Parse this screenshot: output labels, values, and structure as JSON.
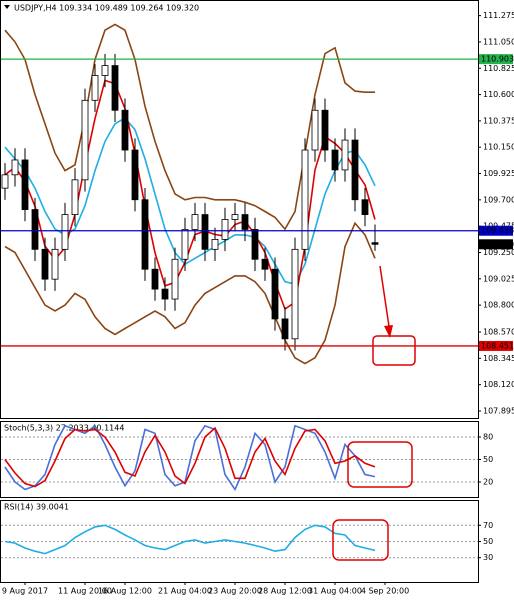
{
  "chart_data": [
    {
      "type": "candlestick",
      "title": "USDJPY,H4  109.334 109.489 109.264 109.320",
      "categories": [
        null,
        null,
        "9 Aug 2017",
        null,
        null,
        null,
        null,
        null,
        "11 Aug 20:00",
        null,
        null,
        null,
        "16 Aug 12:00",
        null,
        null,
        null,
        null,
        null,
        "21 Aug 04:00",
        null,
        null,
        null,
        null,
        "23 Aug 20:00",
        null,
        null,
        null,
        null,
        "28 Aug 12:00",
        null,
        null,
        null,
        null,
        "31 Aug 04:00",
        null,
        null,
        null,
        null,
        "4 Sep 20:00",
        null
      ],
      "open": [
        109.8,
        109.914,
        110.041,
        109.617,
        109.277,
        109.022,
        109.277,
        109.574,
        109.871,
        110.551,
        110.763,
        110.848,
        110.466,
        110.126,
        109.701,
        109.107,
        108.937,
        108.852,
        109.192,
        109.447,
        109.574,
        109.277,
        109.362,
        109.532,
        109.574,
        109.447,
        109.192,
        109.107,
        108.682,
        108.512,
        109.277,
        110.126,
        110.466,
        110.126,
        109.956,
        110.211,
        109.701,
        109.334,
        null,
        null
      ],
      "high": [
        110.014,
        110.141,
        110.141,
        109.717,
        109.377,
        109.377,
        109.674,
        109.971,
        110.651,
        110.863,
        110.948,
        110.948,
        110.566,
        110.226,
        109.801,
        109.207,
        109.037,
        109.292,
        109.547,
        109.674,
        109.674,
        109.462,
        109.632,
        109.674,
        109.674,
        109.547,
        109.292,
        109.207,
        108.782,
        109.377,
        110.226,
        110.566,
        110.566,
        110.226,
        110.311,
        110.311,
        109.801,
        109.489,
        null,
        null
      ],
      "low": [
        109.7,
        109.814,
        109.517,
        109.177,
        108.922,
        108.922,
        109.177,
        109.474,
        109.771,
        110.451,
        110.663,
        110.366,
        110.026,
        109.601,
        109.007,
        108.837,
        108.752,
        108.752,
        109.092,
        109.347,
        109.177,
        109.177,
        109.262,
        109.432,
        109.347,
        109.092,
        109.007,
        108.582,
        108.412,
        108.412,
        109.177,
        110.026,
        110.026,
        109.856,
        109.856,
        109.601,
        109.474,
        109.264,
        null,
        null
      ],
      "close": [
        109.914,
        110.041,
        109.617,
        109.277,
        109.022,
        109.277,
        109.574,
        109.871,
        110.551,
        110.763,
        110.848,
        110.466,
        110.126,
        109.701,
        109.107,
        108.937,
        108.852,
        109.192,
        109.447,
        109.574,
        109.277,
        109.362,
        109.532,
        109.574,
        109.447,
        109.192,
        109.107,
        108.682,
        108.512,
        109.277,
        110.126,
        110.466,
        110.126,
        109.956,
        110.211,
        109.701,
        109.574,
        109.32,
        null,
        null
      ],
      "up_color": "#ffffff",
      "down_color": "#000000",
      "wick_color": "#000000",
      "series": [
        {
          "color": "#8b4513",
          "values": [
            111.15,
            111.05,
            110.9,
            110.6,
            110.35,
            110.1,
            109.95,
            110.0,
            110.4,
            110.9,
            111.15,
            111.2,
            111.15,
            110.9,
            110.5,
            110.2,
            109.95,
            109.75,
            109.7,
            109.72,
            109.72,
            109.7,
            109.7,
            109.7,
            109.68,
            109.65,
            109.6,
            109.55,
            109.45,
            109.6,
            110.1,
            110.6,
            110.95,
            111.0,
            110.7,
            110.63,
            110.62,
            110.62,
            null,
            null
          ]
        },
        {
          "color": "#8b4513",
          "values": [
            109.3,
            109.25,
            109.1,
            108.95,
            108.8,
            108.75,
            108.8,
            108.9,
            108.85,
            108.7,
            108.6,
            108.55,
            108.6,
            108.65,
            108.7,
            108.75,
            108.7,
            108.6,
            108.65,
            108.8,
            108.9,
            108.95,
            109.0,
            109.05,
            109.05,
            109.0,
            108.9,
            108.7,
            108.5,
            108.35,
            108.3,
            108.35,
            108.5,
            108.8,
            109.3,
            109.5,
            109.4,
            109.2,
            null,
            null
          ]
        },
        {
          "color": "#1eaee6",
          "values": [
            110.15,
            110.05,
            109.95,
            109.8,
            109.6,
            109.45,
            109.4,
            109.45,
            109.65,
            109.95,
            110.2,
            110.35,
            110.4,
            110.3,
            110.05,
            109.75,
            109.45,
            109.25,
            109.15,
            109.2,
            109.25,
            109.3,
            109.35,
            109.4,
            109.4,
            109.38,
            109.3,
            109.15,
            109.0,
            108.98,
            109.15,
            109.45,
            109.75,
            109.95,
            110.1,
            110.12,
            110.0,
            109.82,
            null,
            null
          ]
        },
        {
          "color": "#e00000",
          "values": [
            109.914,
            109.978,
            109.857,
            109.645,
            109.305,
            109.192,
            109.291,
            109.574,
            109.999,
            110.395,
            110.721,
            110.692,
            110.48,
            110.098,
            109.645,
            109.248,
            108.965,
            108.994,
            109.164,
            109.404,
            109.433,
            109.404,
            109.39,
            109.489,
            109.518,
            109.404,
            109.249,
            108.994,
            108.767,
            108.824,
            109.305,
            109.956,
            110.239,
            110.183,
            110.098,
            109.956,
            109.829,
            109.532,
            null,
            null
          ]
        }
      ],
      "levels": [
        {
          "value": 110.903,
          "color": "#22b14c"
        },
        {
          "value": 109.436,
          "color": "#0000c8"
        },
        {
          "value": 108.451,
          "color": "#e00000"
        }
      ],
      "last_price": {
        "value": 109.32,
        "label": "109.320"
      },
      "ylim": [
        107.835,
        111.4
      ],
      "yticks": [
        111.275,
        {
          "value": 111.05,
          "label": "111.050"
        },
        110.825,
        {
          "value": 110.6,
          "label": "110.600"
        },
        110.375,
        {
          "value": 110.15,
          "label": "110.150"
        },
        109.925,
        {
          "value": 109.7,
          "label": "109.700"
        },
        109.475,
        {
          "value": 109.25,
          "label": "109.250"
        },
        109.025,
        {
          "value": 108.8,
          "label": "108.800"
        },
        {
          "value": 108.57,
          "label": "108.570"
        },
        108.345,
        {
          "value": 108.12,
          "label": "108.120"
        },
        107.895
      ],
      "grid": false
    },
    {
      "type": "line",
      "title": "Stoch(5,3,3) 27.2033 40.1144",
      "series": [
        {
          "color": "#4a6fd8",
          "values": [
            40,
            20,
            10,
            15,
            30,
            70,
            95,
            90,
            85,
            95,
            70,
            40,
            15,
            35,
            90,
            85,
            30,
            15,
            20,
            75,
            95,
            90,
            30,
            10,
            40,
            85,
            70,
            20,
            40,
            95,
            90,
            85,
            60,
            25,
            70,
            55,
            30,
            27.2033,
            null,
            null
          ]
        },
        {
          "color": "#e00000",
          "values": [
            50,
            32,
            18,
            14,
            22,
            48,
            78,
            90,
            88,
            90,
            80,
            60,
            33,
            28,
            60,
            82,
            60,
            28,
            18,
            45,
            80,
            92,
            65,
            25,
            25,
            60,
            78,
            48,
            30,
            65,
            88,
            90,
            75,
            45,
            48,
            55,
            45,
            40.1144,
            null,
            null
          ]
        }
      ],
      "ylim": [
        0,
        100
      ],
      "yticks": [
        20,
        50,
        80
      ],
      "grid": true
    },
    {
      "type": "line",
      "title": "RSI(14) 39.0041",
      "series": [
        {
          "color": "#1eaee6",
          "values": [
            50,
            48,
            42,
            38,
            35,
            40,
            45,
            55,
            62,
            68,
            70,
            65,
            58,
            52,
            45,
            42,
            40,
            45,
            50,
            52,
            48,
            50,
            52,
            50,
            48,
            45,
            42,
            38,
            40,
            55,
            65,
            70,
            68,
            60,
            58,
            45,
            42,
            39.0041,
            null,
            null
          ]
        }
      ],
      "ylim": [
        0,
        100
      ],
      "yticks": [
        30,
        50,
        70
      ],
      "grid": true
    }
  ]
}
